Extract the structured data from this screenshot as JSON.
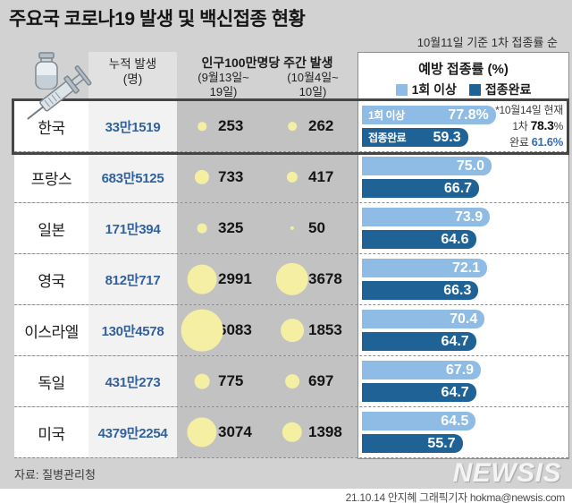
{
  "title": "주요국 코로나19 발생 및 백신접종 현황",
  "subtitle": "10월11일 기준 1차 접종률 순",
  "header": {
    "cumulative_line1": "누적 발생",
    "cumulative_line2": "(명)",
    "weekly_title": "인구100만명당 주간 발생",
    "week1_line1": "(9월13일~",
    "week1_line2": "19일)",
    "week2_line1": "(10월4일~",
    "week2_line2": "10일)"
  },
  "panel": {
    "title": "예방 접종률 (%)",
    "legend": [
      {
        "label": "1회 이상",
        "color": "#8ebce5"
      },
      {
        "label": "접종완료",
        "color": "#1f6396"
      }
    ]
  },
  "rows": [
    {
      "country": "한국",
      "cumulative": "33만1519",
      "week1": 253,
      "week2": 262,
      "dose1": 77.8,
      "dose1_text": "77.8%",
      "complete": 59.3,
      "complete_text": "59.3",
      "highlight": true
    },
    {
      "country": "프랑스",
      "cumulative": "683만5125",
      "week1": 733,
      "week2": 417,
      "dose1": 75.0,
      "dose1_text": "75.0",
      "complete": 66.7,
      "complete_text": "66.7",
      "highlight": false
    },
    {
      "country": "일본",
      "cumulative": "171만394",
      "week1": 325,
      "week2": 50,
      "dose1": 73.9,
      "dose1_text": "73.9",
      "complete": 64.6,
      "complete_text": "64.6",
      "highlight": false
    },
    {
      "country": "영국",
      "cumulative": "812만717",
      "week1": 2991,
      "week2": 3678,
      "dose1": 72.1,
      "dose1_text": "72.1",
      "complete": 66.3,
      "complete_text": "66.3",
      "highlight": false
    },
    {
      "country": "이스라엘",
      "cumulative": "130만4578",
      "week1": 6083,
      "week2": 1853,
      "dose1": 70.4,
      "dose1_text": "70.4",
      "complete": 64.7,
      "complete_text": "64.7",
      "highlight": false
    },
    {
      "country": "독일",
      "cumulative": "431만273",
      "week1": 775,
      "week2": 697,
      "dose1": 67.9,
      "dose1_text": "67.9",
      "complete": 64.7,
      "complete_text": "64.7",
      "highlight": false
    },
    {
      "country": "미국",
      "cumulative": "4379만2254",
      "week1": 3074,
      "week2": 1398,
      "dose1": 64.5,
      "dose1_text": "64.5",
      "complete": 55.7,
      "complete_text": "55.7",
      "highlight": false
    }
  ],
  "korea_note": {
    "line1": "*10월14일 현재",
    "line2_prefix": "1차 ",
    "line2_value": "78.3",
    "line2_unit": "%",
    "line3_prefix": "완료 ",
    "line3_value": "61.6%"
  },
  "source": "자료: 질병관리청",
  "logo": "NEWSIS",
  "credit": "21.10.14 안지혜 그래픽기자 hokma@newsis.com",
  "colors": {
    "bubble": "#f4efa3",
    "cumulative_text": "#33619e",
    "dose1_bar": "#8ebce5",
    "complete_bar": "#1f6396"
  },
  "chart_data": {
    "type": "table",
    "title": "주요국 코로나19 발생 및 백신접종 현황",
    "subtitle": "10월11일 기준 1차 접종률 순",
    "categories": [
      "한국",
      "프랑스",
      "일본",
      "영국",
      "이스라엘",
      "독일",
      "미국"
    ],
    "series": [
      {
        "name": "누적 발생(명)",
        "values": [
          "33만1519",
          "683만5125",
          "171만394",
          "812만717",
          "130만4578",
          "431만273",
          "4379만2254"
        ]
      },
      {
        "name": "인구100만명당 주간 발생(9월13일~19일)",
        "values": [
          253,
          733,
          325,
          2991,
          6083,
          775,
          3074
        ]
      },
      {
        "name": "인구100만명당 주간 발생(10월4일~10일)",
        "values": [
          262,
          417,
          50,
          3678,
          1853,
          697,
          1398
        ]
      },
      {
        "name": "예방 접종률 1회 이상(%)",
        "values": [
          77.8,
          75.0,
          73.9,
          72.1,
          70.4,
          67.9,
          64.5
        ]
      },
      {
        "name": "예방 접종률 접종완료(%)",
        "values": [
          59.3,
          66.7,
          64.6,
          66.3,
          64.7,
          64.7,
          55.7
        ]
      }
    ],
    "annotations": [
      "한국: *10월14일 현재 1차 78.3% 완료 61.6%"
    ],
    "legend_position": "top-right",
    "sort": "1차 접종률 내림차순"
  }
}
